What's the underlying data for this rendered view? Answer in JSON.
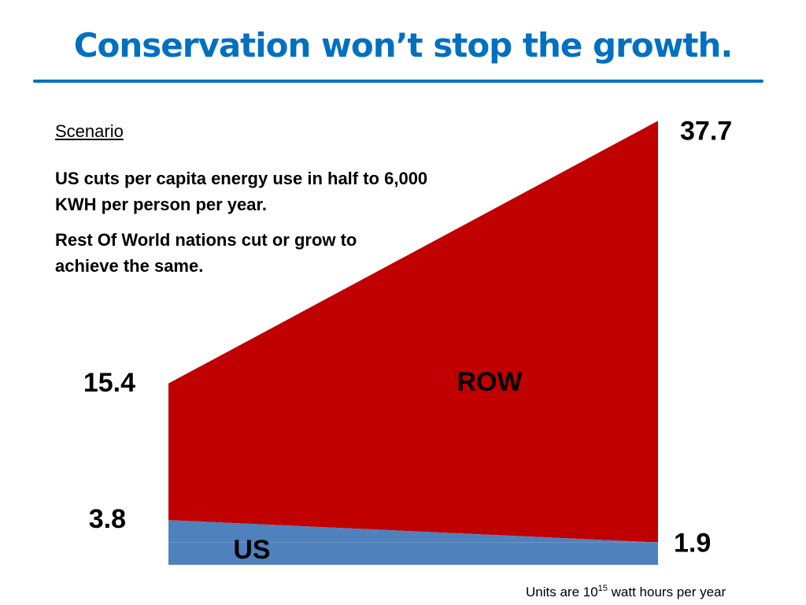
{
  "slide": {
    "title": "Conservation won’t stop the growth.",
    "title_color": "#0070c0",
    "rule_color": "#0070c0"
  },
  "scenario": {
    "heading": "Scenario",
    "line1": "US cuts per capita energy use in half to 6,000 KWH per person per year.",
    "line2": "Rest Of World nations cut or grow to achieve the same."
  },
  "units": {
    "prefix": "Units are 10",
    "exponent": "15",
    "suffix": " watt hours per year"
  },
  "chart_data": {
    "type": "area",
    "stacked": true,
    "x": [
      "start",
      "end"
    ],
    "series": [
      {
        "name": "US",
        "values": [
          3.8,
          1.9
        ],
        "color": "#4f81bd"
      },
      {
        "name": "ROW",
        "values": [
          11.6,
          35.8
        ],
        "color": "#c00000"
      }
    ],
    "totals": [
      15.4,
      37.7
    ],
    "value_labels": {
      "start_total": "15.4",
      "start_us": "3.8",
      "end_total": "37.7",
      "end_us": "1.9"
    },
    "ylim": [
      0,
      40
    ],
    "grid": false,
    "axes_visible": false
  }
}
